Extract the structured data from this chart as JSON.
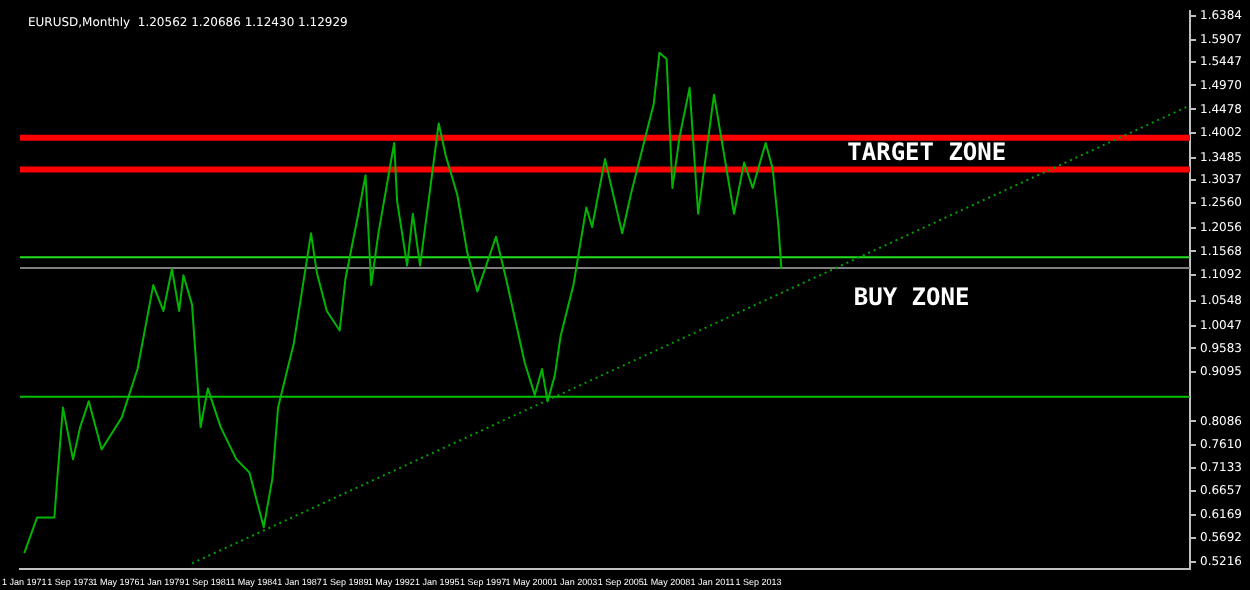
{
  "chart_data": {
    "type": "line",
    "title": "EURUSD,Monthly  1.20562 1.20686 1.12430 1.12929",
    "series": [
      {
        "color": "#00b400",
        "x": [
          "1971-01",
          "1971-10",
          "1972-10",
          "1972-12",
          "1973-04",
          "1973-11",
          "1974-04",
          "1974-10",
          "1975-07",
          "1976-09",
          "1977-08",
          "1978-07",
          "1979-02",
          "1979-08",
          "1980-01",
          "1980-04",
          "1980-10",
          "1981-04",
          "1981-09",
          "1982-06",
          "1983-05",
          "1984-02",
          "1984-12",
          "1985-06",
          "1985-10",
          "1986-09",
          "1987-09",
          "1988-01",
          "1988-08",
          "1989-05",
          "1989-09",
          "1990-06",
          "1990-11",
          "1991-03",
          "1991-08",
          "1992-07",
          "1992-09",
          "1993-04",
          "1993-08",
          "1994-01",
          "1994-07",
          "1995-02",
          "1995-07",
          "1996-03",
          "1996-10",
          "1997-05",
          "1998-06",
          "1999-01",
          "2000-02",
          "2000-09",
          "2001-02",
          "2001-06",
          "2001-11",
          "2002-03",
          "2002-12",
          "2003-09",
          "2004-01",
          "2004-10",
          "2005-10",
          "2006-04",
          "2007-08",
          "2007-12",
          "2008-05",
          "2008-09",
          "2009-02",
          "2009-09",
          "2010-03",
          "2011-02",
          "2012-04",
          "2012-11",
          "2013-05",
          "2014-02",
          "2014-07",
          "2014-11",
          "2015-01"
        ],
        "values": [
          0.539,
          0.612,
          0.612,
          0.691,
          0.837,
          0.731,
          0.797,
          0.85,
          0.751,
          0.817,
          0.916,
          1.088,
          1.035,
          1.121,
          1.035,
          1.108,
          1.048,
          0.797,
          0.876,
          0.797,
          0.731,
          0.704,
          0.592,
          0.691,
          0.837,
          0.969,
          1.194,
          1.114,
          1.035,
          0.995,
          1.101,
          1.234,
          1.313,
          1.088,
          1.194,
          1.379,
          1.26,
          1.128,
          1.234,
          1.128,
          1.26,
          1.419,
          1.353,
          1.273,
          1.154,
          1.075,
          1.187,
          1.101,
          0.929,
          0.863,
          0.916,
          0.85,
          0.903,
          0.982,
          1.088,
          1.247,
          1.207,
          1.346,
          1.194,
          1.273,
          1.459,
          1.564,
          1.551,
          1.287,
          1.392,
          1.492,
          1.234,
          1.478,
          1.234,
          1.339,
          1.287,
          1.379,
          1.326,
          1.207,
          1.121
        ]
      },
      {
        "type": "line",
        "color": "#00a000",
        "line_style": "dotted",
        "x": [
          "1980-10",
          "2038-10"
        ],
        "values": [
          0.518,
          1.456
        ]
      }
    ],
    "xlim": [
      "1970-10",
      "2038-10"
    ],
    "xticks": [
      {
        "value": "1971-01",
        "label": "1 Jan 1971"
      },
      {
        "value": "1973-09",
        "label": "1 Sep 1973"
      },
      {
        "value": "1976-05",
        "label": "1 May 1976"
      },
      {
        "value": "1979-01",
        "label": "1 Jan 1979"
      },
      {
        "value": "1981-09",
        "label": "1 Sep 1981"
      },
      {
        "value": "1984-05",
        "label": "1 May 1984"
      },
      {
        "value": "1987-01",
        "label": "1 Jan 1987"
      },
      {
        "value": "1989-09",
        "label": "1 Sep 1989"
      },
      {
        "value": "1992-05",
        "label": "1 May 1992"
      },
      {
        "value": "1995-01",
        "label": "1 Jan 1995"
      },
      {
        "value": "1997-09",
        "label": "1 Sep 1997"
      },
      {
        "value": "2000-05",
        "label": "1 May 2000"
      },
      {
        "value": "2003-01",
        "label": "1 Jan 2003"
      },
      {
        "value": "2005-09",
        "label": "1 Sep 2005"
      },
      {
        "value": "2008-05",
        "label": "1 May 2008"
      },
      {
        "value": "2011-01",
        "label": "1 Jan 2011"
      },
      {
        "value": "2013-09",
        "label": "1 Sep 2013"
      }
    ],
    "ylim": [
      0.506,
      1.649
    ],
    "yticks": [
      {
        "value": 1.6384,
        "label": "1.6384"
      },
      {
        "value": 1.5907,
        "label": "1.5907"
      },
      {
        "value": 1.5447,
        "label": "1.5447"
      },
      {
        "value": 1.497,
        "label": "1.4970"
      },
      {
        "value": 1.4478,
        "label": "1.4478"
      },
      {
        "value": 1.4002,
        "label": "1.4002"
      },
      {
        "value": 1.3485,
        "label": "1.3485"
      },
      {
        "value": 1.3037,
        "label": "1.3037"
      },
      {
        "value": 1.256,
        "label": "1.2560"
      },
      {
        "value": 1.2056,
        "label": "1.2056"
      },
      {
        "value": 1.1568,
        "label": "1.1568"
      },
      {
        "value": 1.1092,
        "label": "1.1092"
      },
      {
        "value": 1.0548,
        "label": "1.0548"
      },
      {
        "value": 1.0047,
        "label": "1.0047"
      },
      {
        "value": 0.9583,
        "label": "0.9583"
      },
      {
        "value": 0.9095,
        "label": "0.9095"
      },
      {
        "value": 0.8086,
        "label": "0.8086"
      },
      {
        "value": 0.761,
        "label": "0.7610"
      },
      {
        "value": 0.7133,
        "label": "0.7133"
      },
      {
        "value": 0.6657,
        "label": "0.6657"
      },
      {
        "value": 0.6169,
        "label": "0.6169"
      },
      {
        "value": 0.5692,
        "label": "0.5692"
      },
      {
        "value": 0.5216,
        "label": "0.5216"
      }
    ],
    "ref_lines": [
      {
        "axis": "y",
        "value": 1.39,
        "color": "#ff0000"
      },
      {
        "axis": "y",
        "value": 1.3247,
        "color": "#ff0000"
      },
      {
        "axis": "y",
        "value": 1.1449,
        "color": "#20e020"
      },
      {
        "axis": "y",
        "value": 1.123,
        "color": "#808080"
      },
      {
        "axis": "y",
        "value": 0.859,
        "color": "#00c000"
      }
    ],
    "annotations": [
      "TARGET ZONE",
      "BUY ZONE"
    ],
    "marker": "none",
    "line_style": "solid",
    "legend": false
  }
}
